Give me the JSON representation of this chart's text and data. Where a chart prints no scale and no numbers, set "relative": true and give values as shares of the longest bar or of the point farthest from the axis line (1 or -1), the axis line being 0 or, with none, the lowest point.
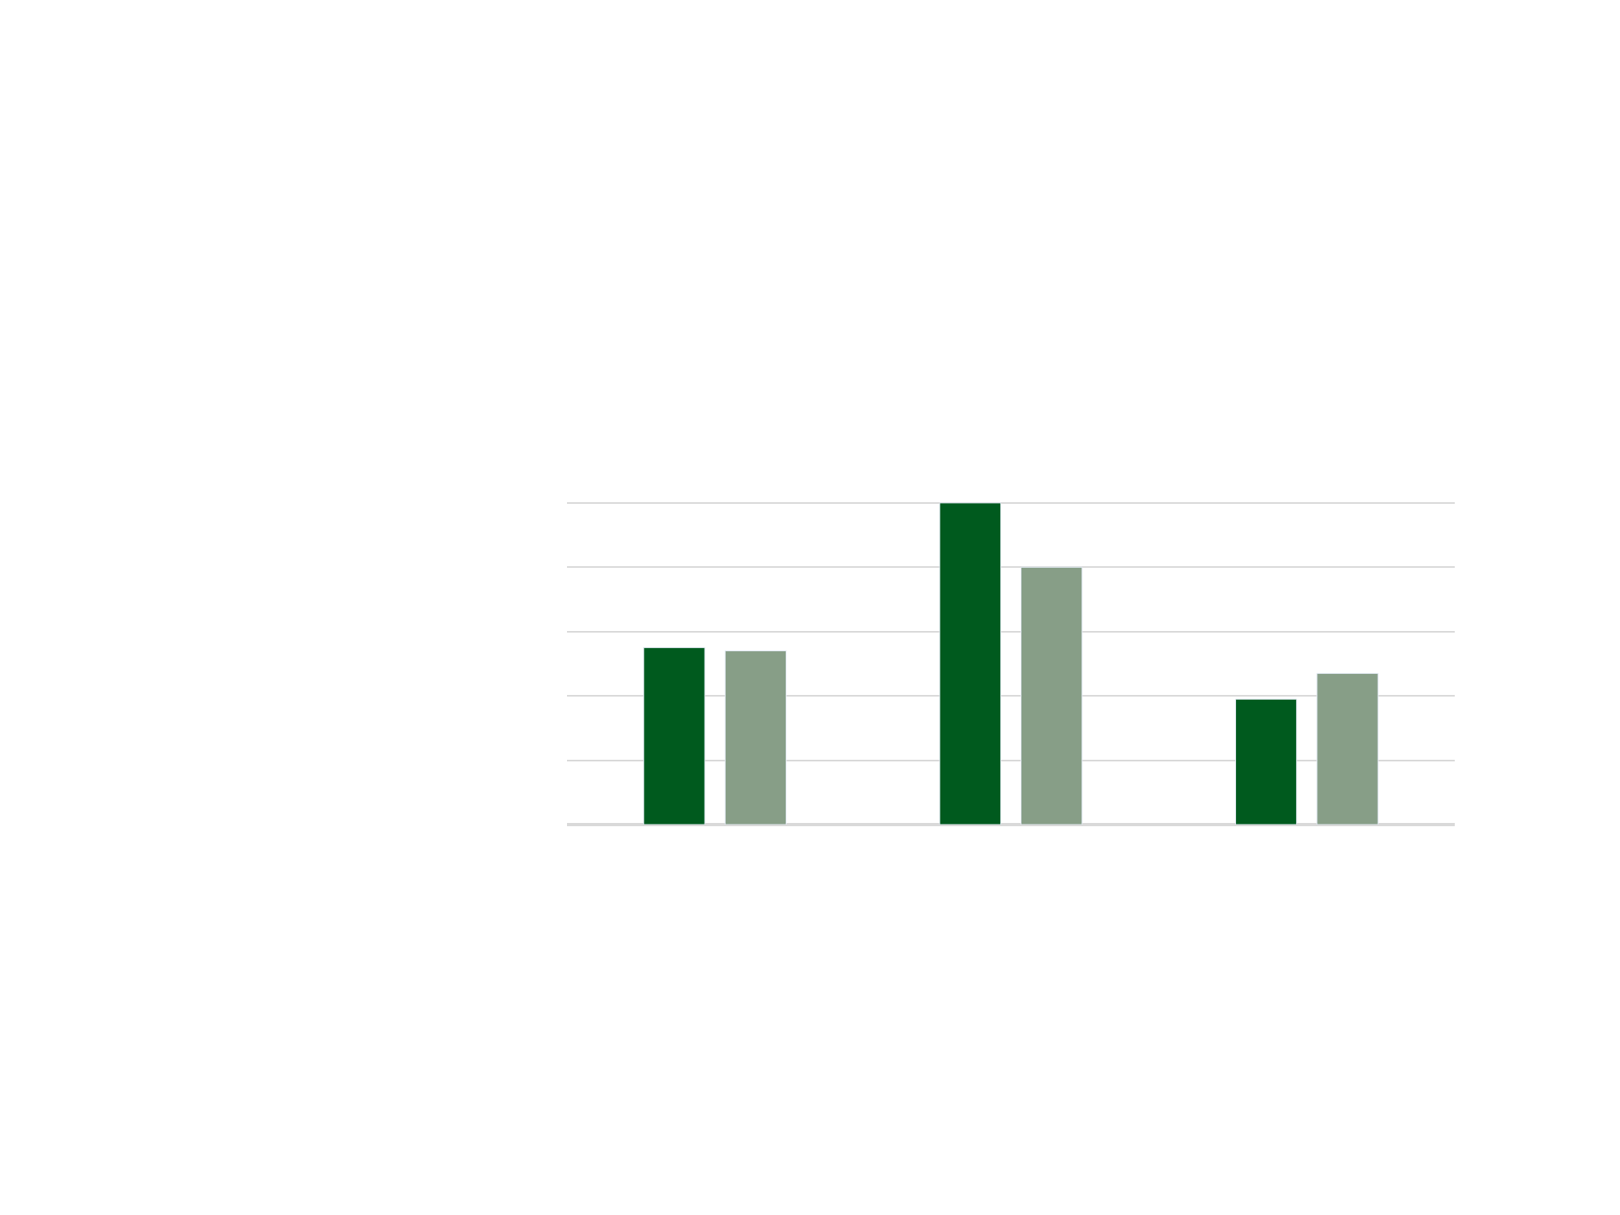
{
  "chart_data": {
    "type": "bar",
    "relative": true,
    "categories": [
      null,
      null,
      null
    ],
    "series": [
      {
        "color": "#005a1e",
        "values": [
          0.55,
          1,
          0.39
        ]
      },
      {
        "color": "#879e87",
        "values": [
          0.54,
          0.8,
          0.47
        ]
      }
    ],
    "grid": "y"
  }
}
